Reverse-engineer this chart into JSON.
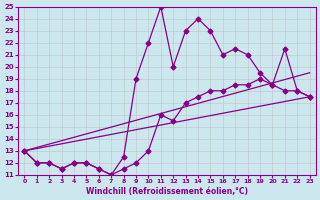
{
  "xlabel": "Windchill (Refroidissement éolien,°C)",
  "xlim": [
    -0.5,
    23.5
  ],
  "ylim": [
    11,
    25
  ],
  "xticks": [
    0,
    1,
    2,
    3,
    4,
    5,
    6,
    7,
    8,
    9,
    10,
    11,
    12,
    13,
    14,
    15,
    16,
    17,
    18,
    19,
    20,
    21,
    22,
    23
  ],
  "yticks": [
    11,
    12,
    13,
    14,
    15,
    16,
    17,
    18,
    19,
    20,
    21,
    22,
    23,
    24,
    25
  ],
  "bg_color": "#cce8ee",
  "line_color": "#880088",
  "grid_color": "#bbbbbb",
  "line1": {
    "x": [
      0,
      23
    ],
    "y": [
      13,
      17.5
    ]
  },
  "line2": {
    "x": [
      0,
      23
    ],
    "y": [
      13,
      19.5
    ]
  },
  "line3": {
    "x": [
      0,
      1,
      2,
      3,
      4,
      5,
      6,
      7,
      8,
      9,
      10,
      11,
      12,
      13,
      14,
      15,
      16,
      17,
      18,
      19,
      20,
      21,
      22,
      23
    ],
    "y": [
      13,
      12,
      12,
      11.5,
      12,
      12,
      11.5,
      11,
      11.5,
      12,
      13,
      16,
      15.5,
      17,
      17.5,
      18,
      18,
      18.5,
      18.5,
      19,
      18.5,
      18,
      18,
      17.5
    ]
  },
  "line4": {
    "x": [
      0,
      1,
      2,
      3,
      4,
      5,
      6,
      7,
      8,
      9,
      10,
      11,
      12,
      13,
      14,
      15,
      16,
      17,
      18,
      19,
      20,
      21,
      22,
      23
    ],
    "y": [
      13,
      12,
      12,
      11.5,
      12,
      12,
      11.5,
      11,
      12.5,
      19,
      22,
      25,
      20,
      23,
      24,
      23,
      21,
      21.5,
      21,
      19.5,
      18.5,
      21.5,
      18,
      17.5
    ]
  }
}
